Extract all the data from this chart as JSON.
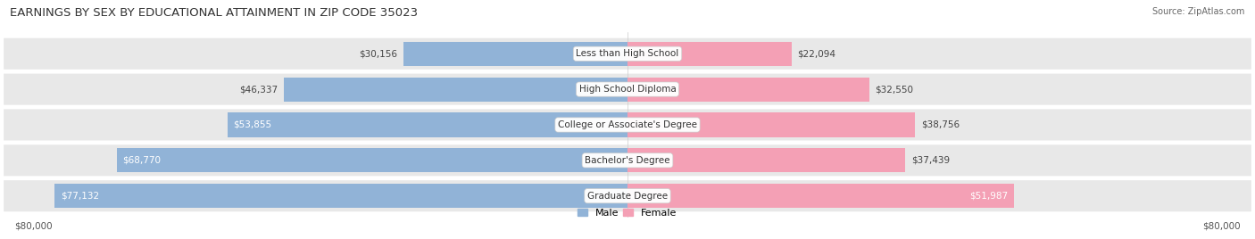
{
  "title": "EARNINGS BY SEX BY EDUCATIONAL ATTAINMENT IN ZIP CODE 35023",
  "source": "Source: ZipAtlas.com",
  "categories": [
    "Less than High School",
    "High School Diploma",
    "College or Associate's Degree",
    "Bachelor's Degree",
    "Graduate Degree"
  ],
  "male_values": [
    30156,
    46337,
    53855,
    68770,
    77132
  ],
  "female_values": [
    22094,
    32550,
    38756,
    37439,
    51987
  ],
  "male_color": "#91b3d7",
  "female_color": "#f4a0b5",
  "row_bg_color": "#e8e8e8",
  "xlim": 80000,
  "title_fontsize": 9.5,
  "label_fontsize": 7.5,
  "value_fontsize": 7.5,
  "axis_label_fontsize": 7.5,
  "legend_fontsize": 8,
  "white_text_threshold_male": 50000,
  "white_text_threshold_female": 48000
}
